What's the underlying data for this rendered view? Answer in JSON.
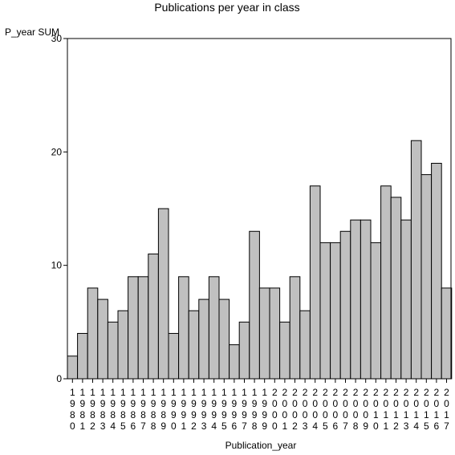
{
  "chart_data": {
    "type": "bar",
    "title": "Publications per year in class",
    "ylabel": "P_year SUM",
    "xlabel": "Publication_year",
    "ylim": [
      0,
      30
    ],
    "yticks": [
      0,
      10,
      20,
      30
    ],
    "categories": [
      "1980",
      "1981",
      "1982",
      "1983",
      "1984",
      "1985",
      "1986",
      "1987",
      "1988",
      "1989",
      "1990",
      "1991",
      "1992",
      "1993",
      "1994",
      "1995",
      "1996",
      "1997",
      "1998",
      "1999",
      "2000",
      "2001",
      "2002",
      "2003",
      "2004",
      "2005",
      "2006",
      "2007",
      "2008",
      "2009",
      "2010",
      "2011",
      "2012",
      "2013",
      "2014",
      "2015",
      "2016",
      "2017"
    ],
    "values": [
      2,
      4,
      8,
      7,
      5,
      6,
      9,
      9,
      11,
      15,
      4,
      9,
      6,
      7,
      9,
      7,
      3,
      5,
      13,
      8,
      8,
      5,
      9,
      6,
      17,
      12,
      12,
      13,
      14,
      14,
      12,
      17,
      16,
      14,
      21,
      18,
      19,
      8
    ],
    "bar_color": "#c0c0c0",
    "grid": false
  }
}
